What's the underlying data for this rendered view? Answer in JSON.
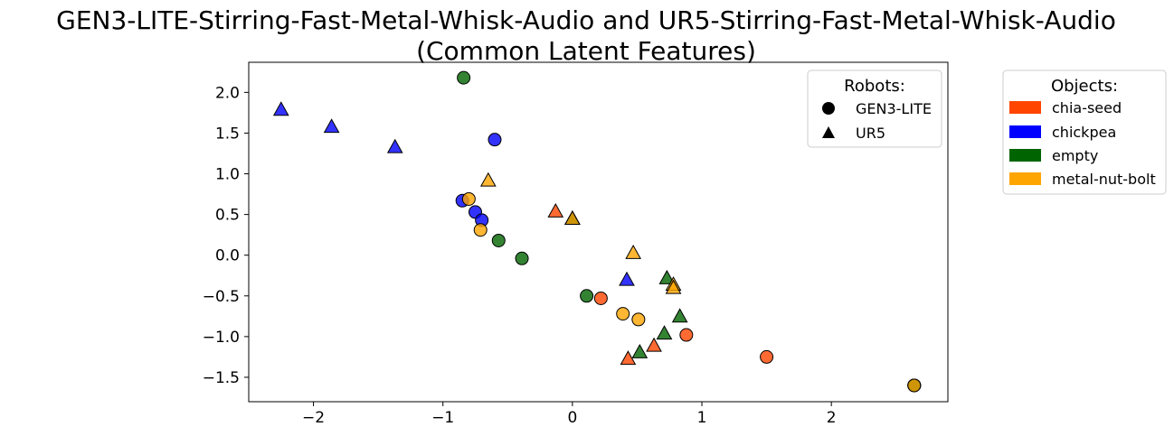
{
  "chart_data": {
    "type": "scatter",
    "title_lines": [
      "GEN3-LITE-Stirring-Fast-Metal-Whisk-Audio and UR5-Stirring-Fast-Metal-Whisk-Audio",
      "(Common Latent Features)"
    ],
    "xlabel": "",
    "ylabel": "",
    "xlim": [
      -2.5,
      2.9
    ],
    "ylim": [
      -1.8,
      2.37
    ],
    "xticks": [
      -2,
      -1,
      0,
      1,
      2
    ],
    "yticks": [
      2.0,
      1.5,
      1.0,
      0.5,
      0.0,
      -0.5,
      -1.0,
      -1.5
    ],
    "xtick_labels": [
      "−2",
      "−1",
      "0",
      "1",
      "2"
    ],
    "ytick_labels": [
      "2.0",
      "1.5",
      "1.0",
      "0.5",
      "0.0",
      "−0.5",
      "−1.0",
      "−1.5"
    ],
    "grid": false,
    "robots_legend": {
      "title": "Robots:",
      "placement": "top-right",
      "items": [
        {
          "label": "GEN3-LITE",
          "marker": "circle"
        },
        {
          "label": "UR5",
          "marker": "triangle"
        }
      ]
    },
    "objects_legend": {
      "title": "Objects:",
      "placement": "outside-right",
      "items": [
        {
          "label": "chia-seed",
          "color": "#FF4500"
        },
        {
          "label": "chickpea",
          "color": "#0000FF"
        },
        {
          "label": "empty",
          "color": "#006400"
        },
        {
          "label": "metal-nut-bolt",
          "color": "#FFA500"
        }
      ]
    },
    "colors": {
      "chia-seed": "#FF4500",
      "chickpea": "#0000FF",
      "empty": "#006400",
      "metal-nut-bolt": "#FFA500"
    },
    "points": [
      {
        "robot": "GEN3-LITE",
        "object": "empty",
        "x": -0.84,
        "y": 2.18
      },
      {
        "robot": "GEN3-LITE",
        "object": "chickpea",
        "x": -0.6,
        "y": 1.42
      },
      {
        "robot": "GEN3-LITE",
        "object": "chickpea",
        "x": -0.85,
        "y": 0.67
      },
      {
        "robot": "GEN3-LITE",
        "object": "metal-nut-bolt",
        "x": -0.8,
        "y": 0.69
      },
      {
        "robot": "GEN3-LITE",
        "object": "chickpea",
        "x": -0.75,
        "y": 0.53
      },
      {
        "robot": "GEN3-LITE",
        "object": "chickpea",
        "x": -0.7,
        "y": 0.43
      },
      {
        "robot": "GEN3-LITE",
        "object": "metal-nut-bolt",
        "x": -0.71,
        "y": 0.31
      },
      {
        "robot": "GEN3-LITE",
        "object": "empty",
        "x": -0.57,
        "y": 0.18
      },
      {
        "robot": "GEN3-LITE",
        "object": "empty",
        "x": -0.39,
        "y": -0.04
      },
      {
        "robot": "GEN3-LITE",
        "object": "empty",
        "x": 0.11,
        "y": -0.5
      },
      {
        "robot": "GEN3-LITE",
        "object": "chia-seed",
        "x": 0.22,
        "y": -0.53
      },
      {
        "robot": "GEN3-LITE",
        "object": "metal-nut-bolt",
        "x": 0.39,
        "y": -0.72
      },
      {
        "robot": "GEN3-LITE",
        "object": "metal-nut-bolt",
        "x": 0.51,
        "y": -0.79
      },
      {
        "robot": "GEN3-LITE",
        "object": "chia-seed",
        "x": 0.88,
        "y": -0.98
      },
      {
        "robot": "GEN3-LITE",
        "object": "chia-seed",
        "x": 1.5,
        "y": -1.25
      },
      {
        "robot": "GEN3-LITE",
        "object": "chia-seed",
        "x": 2.64,
        "y": -1.6
      },
      {
        "robot": "GEN3-LITE",
        "object": "chickpea",
        "x": 2.64,
        "y": -1.6
      },
      {
        "robot": "GEN3-LITE",
        "object": "empty",
        "x": 2.64,
        "y": -1.6
      },
      {
        "robot": "GEN3-LITE",
        "object": "metal-nut-bolt",
        "x": 2.64,
        "y": -1.6
      },
      {
        "robot": "UR5",
        "object": "chickpea",
        "x": -2.25,
        "y": 1.79
      },
      {
        "robot": "UR5",
        "object": "chickpea",
        "x": -1.86,
        "y": 1.58
      },
      {
        "robot": "UR5",
        "object": "chickpea",
        "x": -1.37,
        "y": 1.33
      },
      {
        "robot": "UR5",
        "object": "metal-nut-bolt",
        "x": -0.65,
        "y": 0.92
      },
      {
        "robot": "UR5",
        "object": "chia-seed",
        "x": -0.13,
        "y": 0.54
      },
      {
        "robot": "UR5",
        "object": "chia-seed",
        "x": 0.0,
        "y": 0.45
      },
      {
        "robot": "UR5",
        "object": "chickpea",
        "x": 0.0,
        "y": 0.45
      },
      {
        "robot": "UR5",
        "object": "empty",
        "x": 0.0,
        "y": 0.45
      },
      {
        "robot": "UR5",
        "object": "metal-nut-bolt",
        "x": 0.0,
        "y": 0.45
      },
      {
        "robot": "UR5",
        "object": "metal-nut-bolt",
        "x": 0.47,
        "y": 0.03
      },
      {
        "robot": "UR5",
        "object": "chickpea",
        "x": 0.42,
        "y": -0.3
      },
      {
        "robot": "UR5",
        "object": "empty",
        "x": 0.73,
        "y": -0.28
      },
      {
        "robot": "UR5",
        "object": "metal-nut-bolt",
        "x": 0.78,
        "y": -0.36
      },
      {
        "robot": "UR5",
        "object": "metal-nut-bolt",
        "x": 0.78,
        "y": -0.4
      },
      {
        "robot": "UR5",
        "object": "empty",
        "x": 0.83,
        "y": -0.75
      },
      {
        "robot": "UR5",
        "object": "empty",
        "x": 0.71,
        "y": -0.96
      },
      {
        "robot": "UR5",
        "object": "chia-seed",
        "x": 0.63,
        "y": -1.11
      },
      {
        "robot": "UR5",
        "object": "empty",
        "x": 0.52,
        "y": -1.19
      },
      {
        "robot": "UR5",
        "object": "chia-seed",
        "x": 0.43,
        "y": -1.27
      }
    ]
  }
}
